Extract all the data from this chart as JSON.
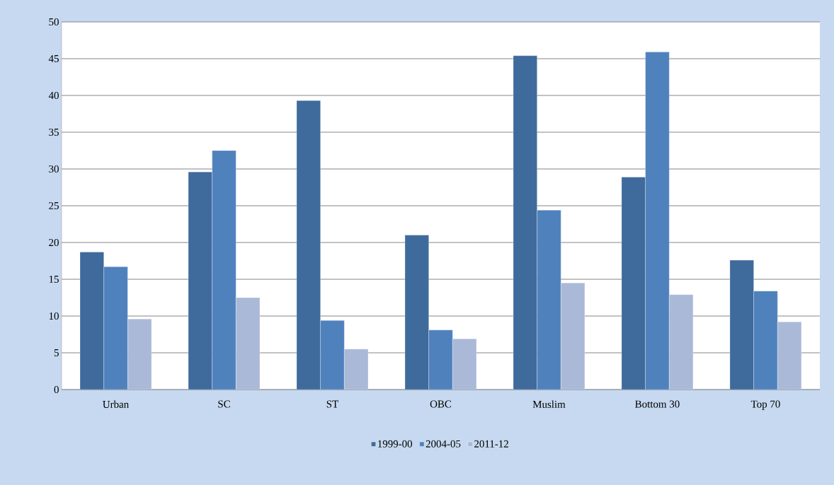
{
  "chart_data": {
    "type": "bar",
    "categories": [
      "Urban",
      "SC",
      "ST",
      "OBC",
      "Muslim",
      "Bottom 30",
      "Top 70"
    ],
    "series": [
      {
        "name": "1999-00",
        "color": "#3f6a9c",
        "values": [
          18.7,
          29.6,
          39.3,
          21.0,
          45.4,
          28.9,
          17.6
        ]
      },
      {
        "name": "2004-05",
        "color": "#4f81bd",
        "values": [
          16.7,
          32.5,
          9.4,
          8.1,
          24.4,
          45.9,
          13.4
        ]
      },
      {
        "name": "2011-12",
        "color": "#aab9d7",
        "values": [
          9.6,
          12.5,
          5.5,
          6.9,
          14.5,
          12.9,
          9.2
        ]
      }
    ],
    "ylim": [
      0,
      50
    ],
    "yticks": [
      0,
      5,
      10,
      15,
      20,
      25,
      30,
      35,
      40,
      45,
      50
    ],
    "grid": "y",
    "legend": "bottom"
  }
}
